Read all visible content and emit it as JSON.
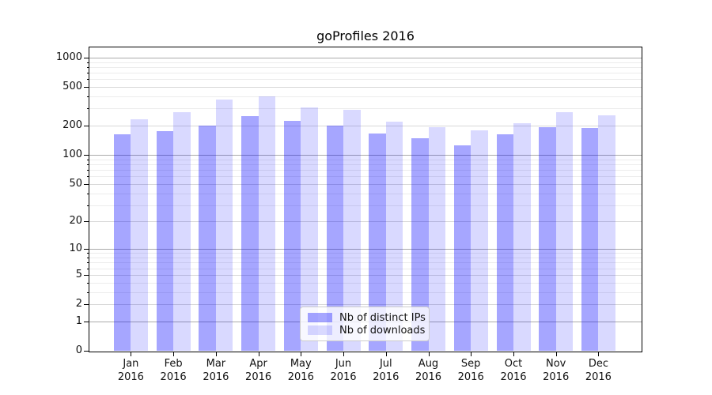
{
  "title": "goProfiles 2016",
  "legend": {
    "items": [
      {
        "label": "Nb of distinct IPs"
      },
      {
        "label": "Nb of downloads"
      }
    ]
  },
  "chart_data": {
    "type": "bar",
    "title": "goProfiles 2016",
    "categories": [
      {
        "line1": "Jan",
        "line2": "2016"
      },
      {
        "line1": "Feb",
        "line2": "2016"
      },
      {
        "line1": "Mar",
        "line2": "2016"
      },
      {
        "line1": "Apr",
        "line2": "2016"
      },
      {
        "line1": "May",
        "line2": "2016"
      },
      {
        "line1": "Jun",
        "line2": "2016"
      },
      {
        "line1": "Jul",
        "line2": "2016"
      },
      {
        "line1": "Aug",
        "line2": "2016"
      },
      {
        "line1": "Sep",
        "line2": "2016"
      },
      {
        "line1": "Oct",
        "line2": "2016"
      },
      {
        "line1": "Nov",
        "line2": "2016"
      },
      {
        "line1": "Dec",
        "line2": "2016"
      }
    ],
    "series": [
      {
        "name": "Nb of distinct IPs",
        "color": "#0000ff",
        "alpha": 0.35,
        "values": [
          162,
          177,
          199,
          252,
          224,
          200,
          166,
          148,
          126,
          164,
          192,
          190
        ]
      },
      {
        "name": "Nb of downloads",
        "color": "#0000ff",
        "alpha": 0.15,
        "values": [
          232,
          276,
          370,
          400,
          311,
          291,
          220,
          194,
          180,
          214,
          276,
          257
        ]
      }
    ],
    "yscale": "log1p",
    "yticks": [
      0,
      1,
      2,
      5,
      10,
      20,
      50,
      100,
      200,
      500,
      1000
    ],
    "yticks_minor": [
      3,
      4,
      6,
      7,
      8,
      9,
      30,
      40,
      60,
      70,
      80,
      90,
      300,
      400,
      600,
      700,
      800,
      900
    ],
    "ylim": [
      0,
      1260
    ],
    "xlabel": "",
    "ylabel": "",
    "grid": "horizontal",
    "legend_position": "lower center"
  }
}
